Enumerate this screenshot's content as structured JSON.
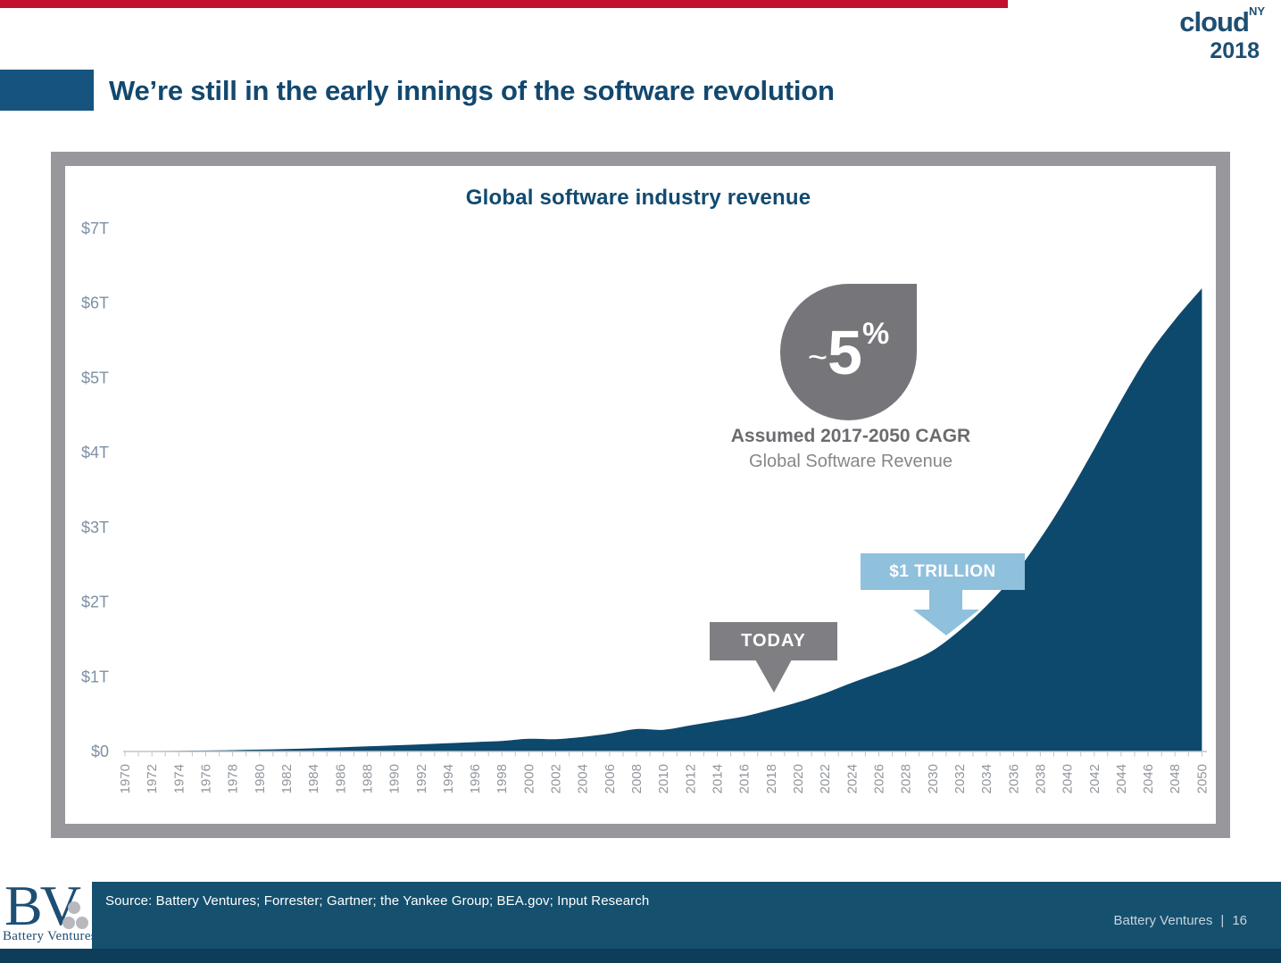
{
  "header": {
    "title": "We’re still in the early innings of the software revolution",
    "conference_logo": {
      "name": "cloud",
      "superscript": "NY",
      "year": "2018"
    }
  },
  "chart_data": {
    "type": "area",
    "title": "Global software industry revenue",
    "x": [
      1970,
      1972,
      1974,
      1976,
      1978,
      1980,
      1982,
      1984,
      1986,
      1988,
      1990,
      1992,
      1994,
      1996,
      1998,
      2000,
      2002,
      2004,
      2006,
      2008,
      2010,
      2012,
      2014,
      2016,
      2018,
      2020,
      2022,
      2024,
      2026,
      2028,
      2030,
      2032,
      2034,
      2036,
      2038,
      2040,
      2042,
      2044,
      2046,
      2048,
      2050
    ],
    "x_tick_labels": [
      "1970",
      "1972",
      "1974",
      "1976",
      "1978",
      "1980",
      "1982",
      "1984",
      "1986",
      "1988",
      "1990",
      "1992",
      "1994",
      "1996",
      "1998",
      "2000",
      "2002",
      "2004",
      "2006",
      "2008",
      "2010",
      "2012",
      "2014",
      "2016",
      "2018",
      "2020",
      "2022",
      "2024",
      "2026",
      "2028",
      "2030",
      "2032",
      "2034",
      "2036",
      "2038",
      "2040",
      "2042",
      "2044",
      "2046",
      "2048",
      "2050"
    ],
    "values": [
      0.004,
      0.006,
      0.009,
      0.013,
      0.018,
      0.025,
      0.033,
      0.043,
      0.055,
      0.068,
      0.082,
      0.095,
      0.11,
      0.125,
      0.14,
      0.17,
      0.165,
      0.195,
      0.24,
      0.3,
      0.29,
      0.35,
      0.41,
      0.47,
      0.56,
      0.66,
      0.78,
      0.92,
      1.05,
      1.18,
      1.35,
      1.62,
      1.95,
      2.35,
      2.85,
      3.42,
      4.05,
      4.7,
      5.3,
      5.78,
      6.2
    ],
    "xlim": [
      1970,
      2050
    ],
    "ylim": [
      0,
      7
    ],
    "y_tick_labels": [
      "$0",
      "$1T",
      "$2T",
      "$3T",
      "$4T",
      "$5T",
      "$6T",
      "$7T"
    ],
    "grid": false,
    "legend": "none",
    "area_color": "#0d486d",
    "annotations": {
      "cagr_badge": {
        "tilde": "~",
        "value": "5",
        "percent": "%"
      },
      "cagr_caption_line1": "Assumed 2017-2050 CAGR",
      "cagr_caption_line2": "Global Software Revenue",
      "trillion_label": "$1 TRILLION",
      "today_label": "TODAY"
    }
  },
  "footer": {
    "source": "Source: Battery Ventures; Forrester; Gartner; the Yankee Group; BEA.gov; Input Research",
    "brand": "Battery Ventures",
    "divider": "|",
    "page_number": "16",
    "logo": {
      "initials": "BV",
      "name": "Battery Ventures"
    }
  },
  "colors": {
    "top_bar": "#c1102f",
    "accent_block": "#16547f",
    "title_text": "#12486f",
    "navy_area": "#0d486d",
    "gray_frame": "#98989c",
    "trillion_blue": "#8fc0dc",
    "today_gray": "#7f7f83",
    "badge_gray": "#76767a",
    "footer_band": "#15506f",
    "footer_bottom_strip": "#0d3d59",
    "axis_gray": "#c2c5c8",
    "y_label_color": "#7d90a4",
    "x_label_color": "#90959b"
  }
}
